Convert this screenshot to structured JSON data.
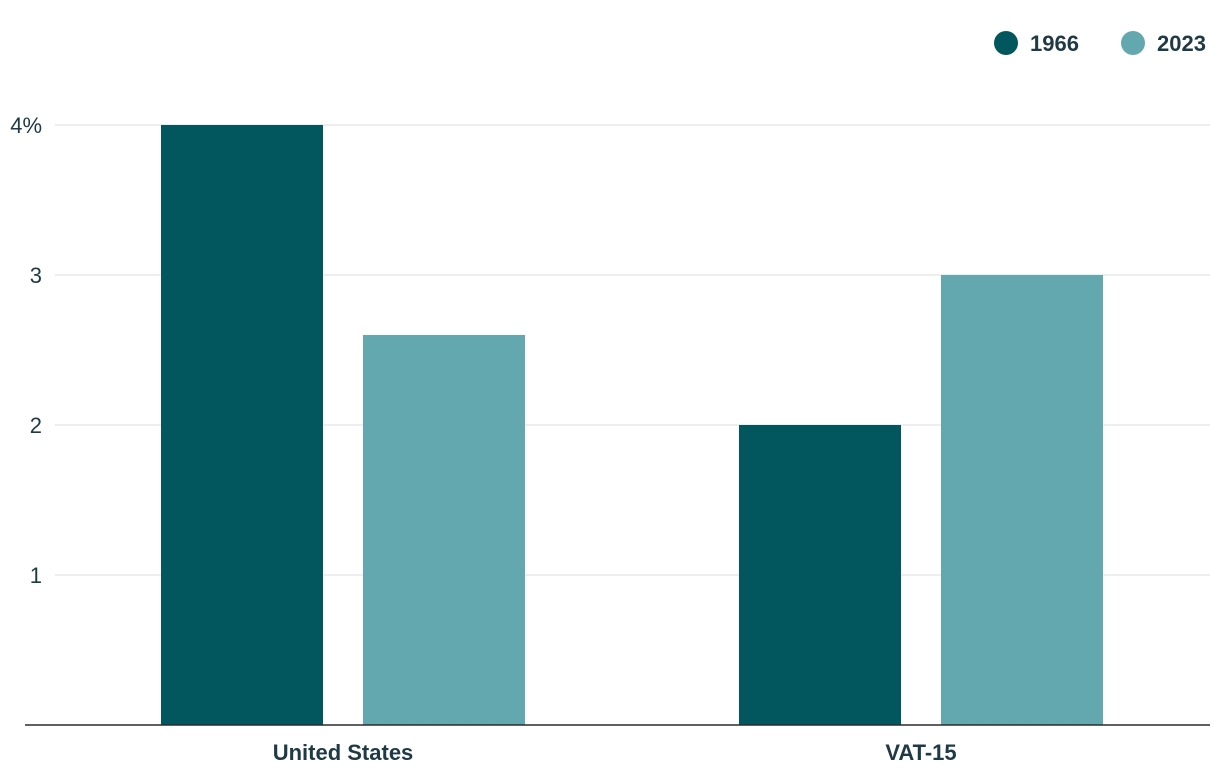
{
  "chart_data": {
    "type": "bar",
    "categories": [
      "United States",
      "VAT-15"
    ],
    "series": [
      {
        "name": "1966",
        "values": [
          4.0,
          2.0
        ],
        "color": "#02565e"
      },
      {
        "name": "2023",
        "values": [
          2.6,
          3.0
        ],
        "color": "#63a7af"
      }
    ],
    "y_ticks": [
      {
        "value": 1,
        "label": "1"
      },
      {
        "value": 2,
        "label": "2"
      },
      {
        "value": 3,
        "label": "3"
      },
      {
        "value": 4,
        "label": "4%"
      }
    ],
    "ylim": [
      0,
      4
    ],
    "grid": true,
    "legend_position": "top-right",
    "title": "",
    "xlabel": "",
    "ylabel": ""
  }
}
